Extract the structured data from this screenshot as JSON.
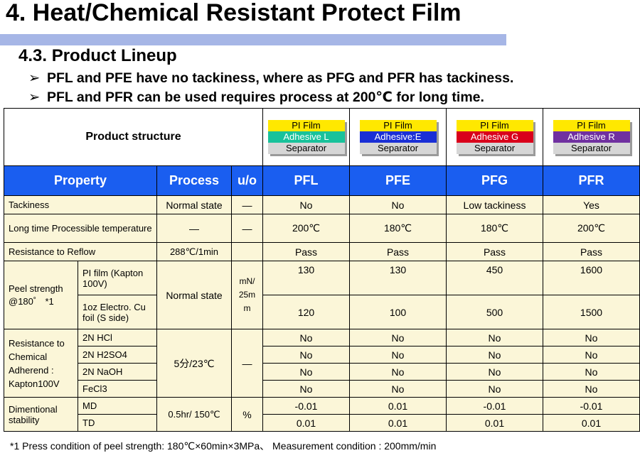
{
  "title": "4. Heat/Chemical Resistant Protect Film",
  "subtitle": "4.3. Product Lineup",
  "bullets": [
    "PFL and PFE have no tackiness, where as PFG and PFR has tackiness.",
    "PFL and PFR can be used requires process at 200℃ for long time."
  ],
  "bullet_mark": "➢",
  "structure": {
    "label": "Product structure",
    "stacks": [
      {
        "top": "PI Film",
        "adhesive": "Adhesive L",
        "adhesive_color": "#19c29b",
        "adhesive_text_color": "#ffffff",
        "bottom": "Separator"
      },
      {
        "top": "PI Film",
        "adhesive": "Adhesive:E",
        "adhesive_color": "#1a2fd6",
        "adhesive_text_color": "#ffffff",
        "bottom": "Separator"
      },
      {
        "top": "PI Film",
        "adhesive": "Adhesive G",
        "adhesive_color": "#d9001b",
        "adhesive_text_color": "#ffffff",
        "bottom": "Separator"
      },
      {
        "top": "PI Film",
        "adhesive": "Adhesive R",
        "adhesive_color": "#7030a0",
        "adhesive_text_color": "#ffffff",
        "bottom": "Separator"
      }
    ]
  },
  "header": {
    "property": "Property",
    "process": "Process",
    "unit": "u/o",
    "products": [
      "PFL",
      "PFE",
      "PFG",
      "PFR"
    ]
  },
  "rows": {
    "tackiness": {
      "label": "Tackiness",
      "process": "Normal state",
      "unit": "―",
      "values": [
        "No",
        "No",
        "Low tackiness",
        "Yes"
      ]
    },
    "long_time": {
      "label": "Long time Processible temperature",
      "process": "―",
      "unit": "―",
      "values": [
        "200℃",
        "180℃",
        "180℃",
        "200℃"
      ]
    },
    "reflow": {
      "label": "Resistance to Reflow",
      "process": "288℃/1min",
      "unit": "",
      "values": [
        "Pass",
        "Pass",
        "Pass",
        "Pass"
      ]
    },
    "peel": {
      "label": "Peel strength @180゜ *1",
      "process": "Normal state",
      "unit": "mN/ 25m m",
      "sub": [
        {
          "label": "PI film (Kapton 100V)",
          "values": [
            "130",
            "130",
            "450",
            "1600"
          ]
        },
        {
          "label": "1oz Electro. Cu foil (S side)",
          "values": [
            "120",
            "100",
            "500",
            "1500"
          ]
        }
      ]
    },
    "chemical": {
      "label": "Resistance to Chemical Adherend : Kapton100V",
      "process": "5分/23℃",
      "unit": "―",
      "sub": [
        {
          "label": "2N HCl",
          "values": [
            "No",
            "No",
            "No",
            "No"
          ]
        },
        {
          "label": "2N H2SO4",
          "values": [
            "No",
            "No",
            "No",
            "No"
          ]
        },
        {
          "label": "2N NaOH",
          "values": [
            "No",
            "No",
            "No",
            "No"
          ]
        },
        {
          "label": "FeCl3",
          "values": [
            "No",
            "No",
            "No",
            "No"
          ]
        }
      ]
    },
    "dimentional": {
      "label": "Dimentional stability",
      "process": "0.5hr/ 150℃",
      "unit": "%",
      "sub": [
        {
          "label": "MD",
          "values": [
            "-0.01",
            "0.01",
            "-0.01",
            "-0.01"
          ]
        },
        {
          "label": "TD",
          "values": [
            "0.01",
            "0.01",
            "0.01",
            "0.01"
          ]
        }
      ]
    }
  },
  "footnote": "*1  Press condition of peel strength:  180℃×60min×3MPa、 Measurement condition : 200mm/min"
}
